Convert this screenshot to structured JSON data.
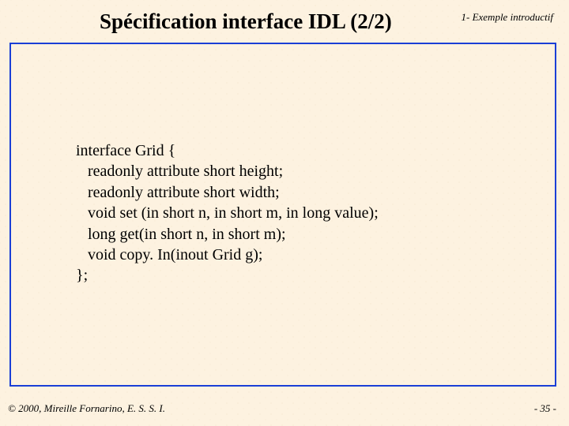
{
  "header_note": "1- Exemple introductif",
  "title": "Spécification interface IDL (2/2)",
  "code": {
    "l1": "interface Grid {",
    "l2": "   readonly attribute short height;",
    "l3": "   readonly attribute short width;",
    "l4": "   void set (in short n, in short m, in long value);",
    "l5": "   long get(in short n, in short m);",
    "l6": "   void copy. In(inout Grid g);",
    "l7": "};"
  },
  "footer": {
    "copyright": "© 2000, Mireille Fornarino, E. S. S. I.",
    "page": "- 35 -"
  },
  "colors": {
    "background": "#fdf2e0",
    "border": "#1a3fd6",
    "text": "#000000"
  }
}
